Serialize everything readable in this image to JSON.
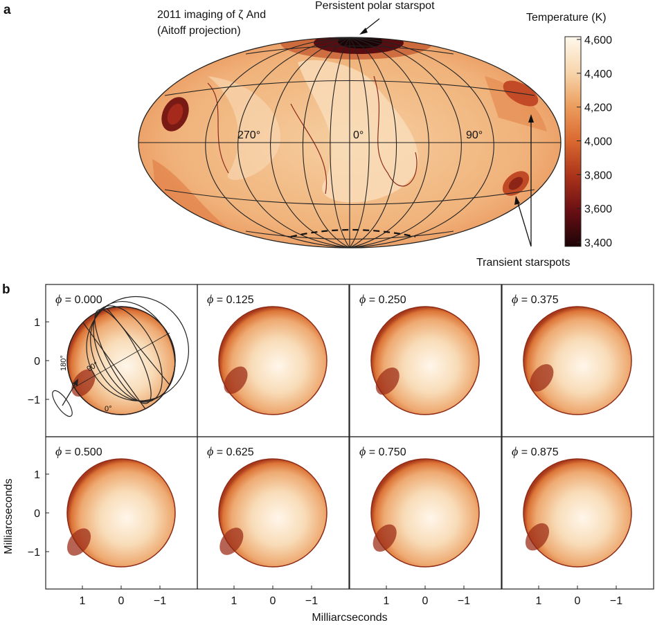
{
  "panel_a": {
    "letter": "a",
    "title_line1": "2011 imaging of ζ And",
    "title_line2": "(Aitoff projection)",
    "annotation_polar": "Persistent polar starspot",
    "annotation_transient": "Transient starspots",
    "longitude_labels": [
      "270°",
      "0°",
      "90°"
    ],
    "colorbar": {
      "title": "Temperature (K)",
      "ticks": [
        "4,600",
        "4,400",
        "4,200",
        "4,000",
        "3,800",
        "3,600",
        "3,400"
      ],
      "range": [
        3400,
        4600
      ],
      "colors": [
        "#fff8ec",
        "#f7d6ad",
        "#ec9e5e",
        "#d9682f",
        "#a8321a",
        "#6a0f14",
        "#1c0406"
      ]
    }
  },
  "panel_b": {
    "letter": "b",
    "x_label": "Milliarcseconds",
    "y_label": "Milliarcseconds",
    "x_ticks": [
      "1",
      "0",
      "−1"
    ],
    "y_ticks": [
      "1",
      "0",
      "−1"
    ],
    "phi_symbol": "ϕ",
    "phases": [
      "= 0.000",
      "= 0.125",
      "= 0.250",
      "= 0.375",
      "= 0.500",
      "= 0.625",
      "= 0.750",
      "= 0.875"
    ],
    "first_panel_grid_labels": [
      "180°",
      "90°",
      "0°"
    ]
  }
}
